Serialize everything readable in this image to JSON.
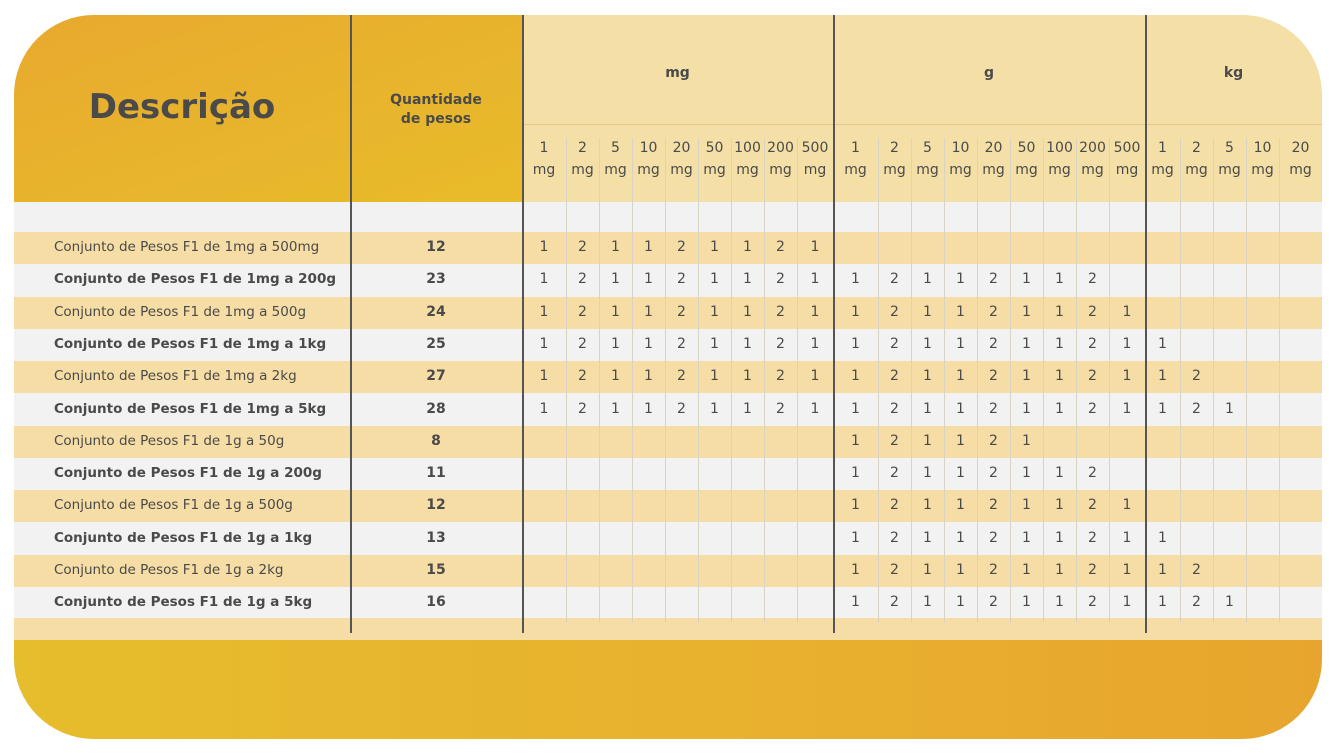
{
  "header": {
    "title": "Descrição",
    "qty_line1": "Quantidade",
    "qty_line2": "de pesos",
    "groups": [
      {
        "label": "mg",
        "units": [
          [
            "1",
            "mg"
          ],
          [
            "2",
            "mg"
          ],
          [
            "5",
            "mg"
          ],
          [
            "10",
            "mg"
          ],
          [
            "20",
            "mg"
          ],
          [
            "50",
            "mg"
          ],
          [
            "100",
            "mg"
          ],
          [
            "200",
            "mg"
          ],
          [
            "500",
            "mg"
          ]
        ]
      },
      {
        "label": "g",
        "units": [
          [
            "1",
            "mg"
          ],
          [
            "2",
            "mg"
          ],
          [
            "5",
            "mg"
          ],
          [
            "10",
            "mg"
          ],
          [
            "20",
            "mg"
          ],
          [
            "50",
            "mg"
          ],
          [
            "100",
            "mg"
          ],
          [
            "200",
            "mg"
          ],
          [
            "500",
            "mg"
          ]
        ]
      },
      {
        "label": "kg",
        "units": [
          [
            "1",
            "mg"
          ],
          [
            "2",
            "mg"
          ],
          [
            "5",
            "mg"
          ],
          [
            "10",
            "mg"
          ],
          [
            "20",
            "mg"
          ]
        ]
      }
    ]
  },
  "rows": [
    {
      "desc": "Conjunto de Pesos F1 de 1mg a 500mg",
      "bold": false,
      "qty": "12",
      "mg": [
        "1",
        "2",
        "1",
        "1",
        "2",
        "1",
        "1",
        "2",
        "1"
      ],
      "g": [
        "",
        "",
        "",
        "",
        "",
        "",
        "",
        "",
        ""
      ],
      "kg": [
        "",
        "",
        "",
        "",
        ""
      ]
    },
    {
      "desc": "Conjunto de Pesos F1 de 1mg a 200g",
      "bold": true,
      "qty": "23",
      "mg": [
        "1",
        "2",
        "1",
        "1",
        "2",
        "1",
        "1",
        "2",
        "1"
      ],
      "g": [
        "1",
        "2",
        "1",
        "1",
        "2",
        "1",
        "1",
        "2",
        ""
      ],
      "kg": [
        "",
        "",
        "",
        "",
        ""
      ]
    },
    {
      "desc": "Conjunto de Pesos F1 de 1mg a 500g",
      "bold": false,
      "qty": "24",
      "mg": [
        "1",
        "2",
        "1",
        "1",
        "2",
        "1",
        "1",
        "2",
        "1"
      ],
      "g": [
        "1",
        "2",
        "1",
        "1",
        "2",
        "1",
        "1",
        "2",
        "1"
      ],
      "kg": [
        "",
        "",
        "",
        "",
        ""
      ]
    },
    {
      "desc": "Conjunto de Pesos F1 de 1mg a 1kg",
      "bold": true,
      "qty": "25",
      "mg": [
        "1",
        "2",
        "1",
        "1",
        "2",
        "1",
        "1",
        "2",
        "1"
      ],
      "g": [
        "1",
        "2",
        "1",
        "1",
        "2",
        "1",
        "1",
        "2",
        "1"
      ],
      "kg": [
        "1",
        "",
        "",
        "",
        ""
      ]
    },
    {
      "desc": "Conjunto de Pesos F1 de 1mg a 2kg",
      "bold": false,
      "qty": "27",
      "mg": [
        "1",
        "2",
        "1",
        "1",
        "2",
        "1",
        "1",
        "2",
        "1"
      ],
      "g": [
        "1",
        "2",
        "1",
        "1",
        "2",
        "1",
        "1",
        "2",
        "1"
      ],
      "kg": [
        "1",
        "2",
        "",
        "",
        ""
      ]
    },
    {
      "desc": "Conjunto de Pesos F1 de 1mg a 5kg",
      "bold": true,
      "qty": "28",
      "mg": [
        "1",
        "2",
        "1",
        "1",
        "2",
        "1",
        "1",
        "2",
        "1"
      ],
      "g": [
        "1",
        "2",
        "1",
        "1",
        "2",
        "1",
        "1",
        "2",
        "1"
      ],
      "kg": [
        "1",
        "2",
        "1",
        "",
        ""
      ]
    },
    {
      "desc": "Conjunto de Pesos F1 de 1g a 50g",
      "bold": false,
      "qty": "8",
      "mg": [
        "",
        "",
        "",
        "",
        "",
        "",
        "",
        "",
        ""
      ],
      "g": [
        "1",
        "2",
        "1",
        "1",
        "2",
        "1",
        "",
        "",
        ""
      ],
      "kg": [
        "",
        "",
        "",
        "",
        ""
      ]
    },
    {
      "desc": "Conjunto de Pesos F1 de 1g a 200g",
      "bold": true,
      "qty": "11",
      "mg": [
        "",
        "",
        "",
        "",
        "",
        "",
        "",
        "",
        ""
      ],
      "g": [
        "1",
        "2",
        "1",
        "1",
        "2",
        "1",
        "1",
        "2",
        ""
      ],
      "kg": [
        "",
        "",
        "",
        "",
        ""
      ]
    },
    {
      "desc": "Conjunto de Pesos F1 de 1g a 500g",
      "bold": false,
      "qty": "12",
      "mg": [
        "",
        "",
        "",
        "",
        "",
        "",
        "",
        "",
        ""
      ],
      "g": [
        "1",
        "2",
        "1",
        "1",
        "2",
        "1",
        "1",
        "2",
        "1"
      ],
      "kg": [
        "",
        "",
        "",
        "",
        ""
      ]
    },
    {
      "desc": "Conjunto de Pesos F1 de 1g a 1kg",
      "bold": true,
      "qty": "13",
      "mg": [
        "",
        "",
        "",
        "",
        "",
        "",
        "",
        "",
        ""
      ],
      "g": [
        "1",
        "2",
        "1",
        "1",
        "2",
        "1",
        "1",
        "2",
        "1"
      ],
      "kg": [
        "1",
        "",
        "",
        "",
        ""
      ]
    },
    {
      "desc": "Conjunto de Pesos F1 de 1g a 2kg",
      "bold": false,
      "qty": "15",
      "mg": [
        "",
        "",
        "",
        "",
        "",
        "",
        "",
        "",
        ""
      ],
      "g": [
        "1",
        "2",
        "1",
        "1",
        "2",
        "1",
        "1",
        "2",
        "1"
      ],
      "kg": [
        "1",
        "2",
        "",
        "",
        ""
      ]
    },
    {
      "desc": "Conjunto de Pesos F1 de 1g a 5kg",
      "bold": true,
      "qty": "16",
      "mg": [
        "",
        "",
        "",
        "",
        "",
        "",
        "",
        "",
        ""
      ],
      "g": [
        "1",
        "2",
        "1",
        "1",
        "2",
        "1",
        "1",
        "2",
        "1"
      ],
      "kg": [
        "1",
        "2",
        "1",
        "",
        ""
      ]
    }
  ]
}
